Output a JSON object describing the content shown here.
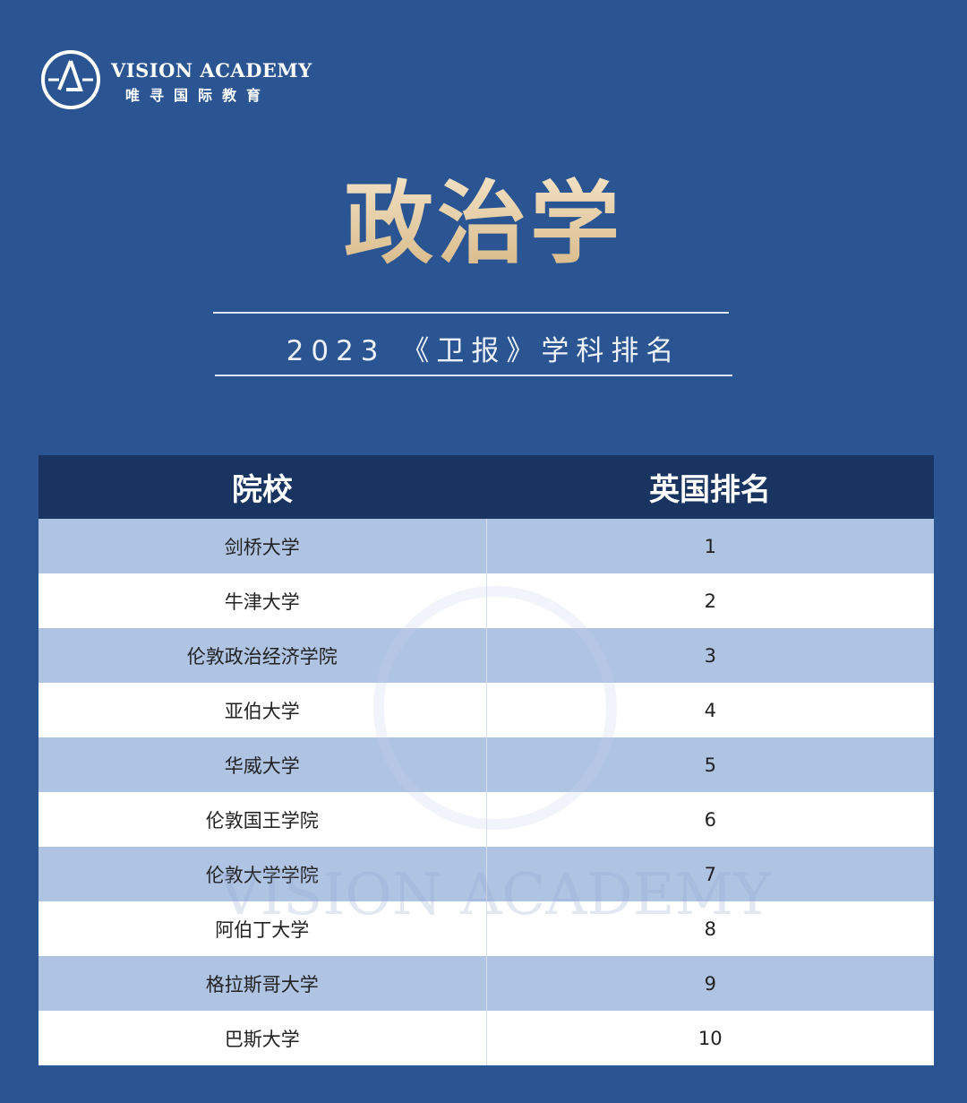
{
  "brand": {
    "name_en": "VISION ACADEMY",
    "name_cn": "唯寻国际教育"
  },
  "title": "政治学",
  "subtitle": "2023 《卫报》学科排名",
  "table": {
    "headers": [
      "院校",
      "英国排名"
    ],
    "rows": [
      {
        "school": "剑桥大学",
        "rank": "1"
      },
      {
        "school": "牛津大学",
        "rank": "2"
      },
      {
        "school": "伦敦政治经济学院",
        "rank": "3"
      },
      {
        "school": "亚伯大学",
        "rank": "4"
      },
      {
        "school": "华威大学",
        "rank": "5"
      },
      {
        "school": "伦敦国王学院",
        "rank": "6"
      },
      {
        "school": "伦敦大学学院",
        "rank": "7"
      },
      {
        "school": "阿伯丁大学",
        "rank": "8"
      },
      {
        "school": "格拉斯哥大学",
        "rank": "9"
      },
      {
        "school": "巴斯大学",
        "rank": "10"
      }
    ]
  },
  "colors": {
    "background": "#2a5592",
    "header": "#1a3462",
    "stripe": "#afc3e3",
    "title_gold": "#e9d3ad"
  }
}
